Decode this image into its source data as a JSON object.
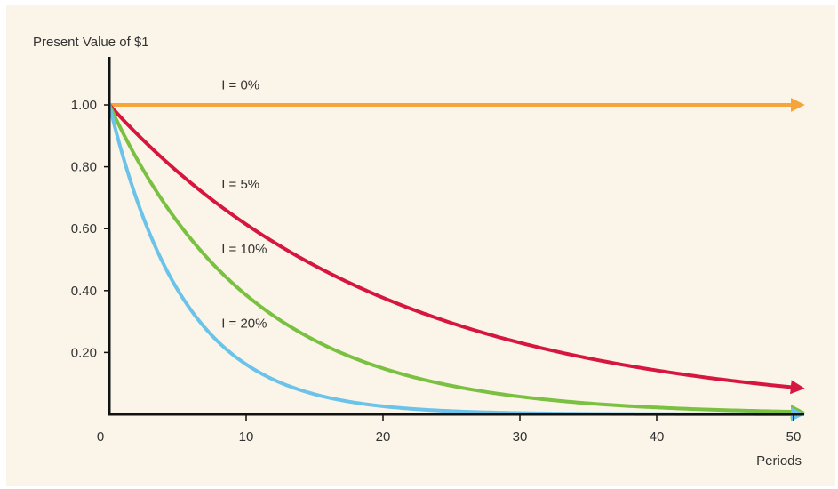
{
  "chart_data": {
    "type": "line",
    "ylabel": "Present Value of $1",
    "xlabel": "Periods",
    "origin_label": "0",
    "xlim": [
      0,
      50
    ],
    "ylim": [
      0,
      1.1
    ],
    "x_ticks": [
      10,
      20,
      30,
      40,
      50
    ],
    "y_ticks": [
      0.2,
      0.4,
      0.6,
      0.8,
      1.0
    ],
    "y_tick_labels": [
      "0.20",
      "0.40",
      "0.60",
      "0.80",
      "1.00"
    ],
    "grid": false,
    "series": [
      {
        "name": "I = 0%",
        "rate": 0.0,
        "color": "#f5a53a",
        "label_at": [
          8,
          1.05
        ]
      },
      {
        "name": "I = 5%",
        "rate": 0.05,
        "color": "#d6163f",
        "label_at": [
          8,
          0.73
        ]
      },
      {
        "name": "I = 10%",
        "rate": 0.1,
        "color": "#7ac142",
        "label_at": [
          8,
          0.52
        ]
      },
      {
        "name": "I = 20%",
        "rate": 0.2,
        "color": "#6cc3ea",
        "label_at": [
          8,
          0.28
        ]
      }
    ]
  }
}
